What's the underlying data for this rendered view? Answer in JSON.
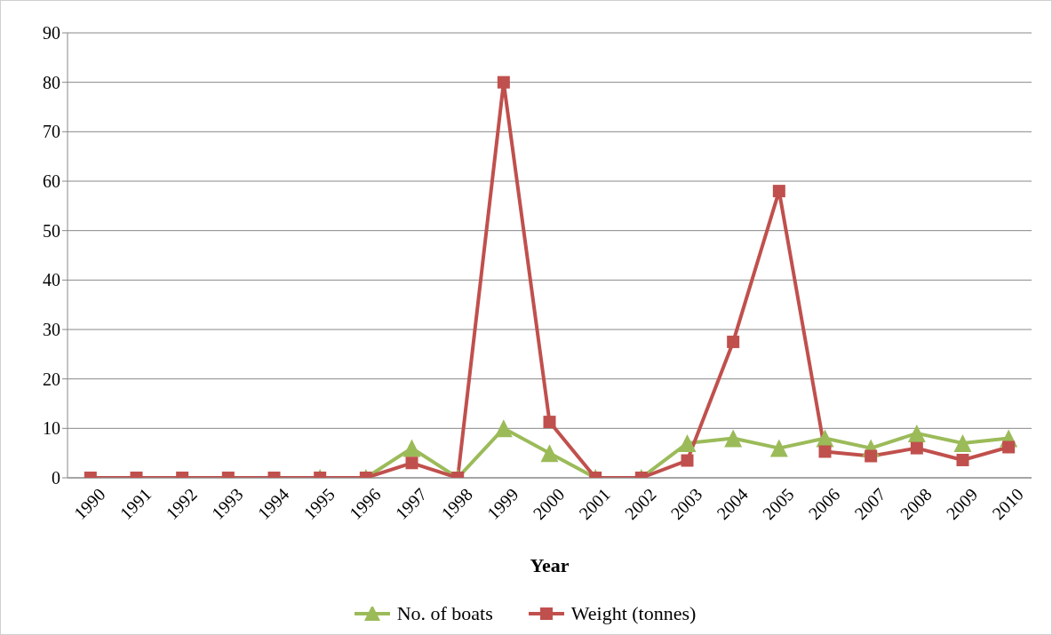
{
  "chart_data": {
    "type": "line",
    "xlabel": "Year",
    "categories": [
      "1990",
      "1991",
      "1992",
      "1993",
      "1994",
      "1995",
      "1996",
      "1997",
      "1998",
      "1999",
      "2000",
      "2001",
      "2002",
      "2003",
      "2004",
      "2005",
      "2006",
      "2007",
      "2008",
      "2009",
      "2010"
    ],
    "series": [
      {
        "name": "No. of boats",
        "color": "#9bbb59",
        "marker": "triangle",
        "values": [
          null,
          null,
          null,
          null,
          null,
          0,
          0,
          6,
          0,
          10,
          5,
          0,
          0,
          7,
          8,
          6,
          8,
          6,
          9,
          7,
          8
        ]
      },
      {
        "name": "Weight (tonnes)",
        "color": "#c0504d",
        "marker": "square",
        "values": [
          0,
          0,
          0,
          0,
          0,
          0,
          0,
          3,
          0,
          80,
          11.3,
          0,
          0,
          3.5,
          27.5,
          58,
          5.3,
          4.4,
          6,
          3.6,
          6.2
        ]
      }
    ],
    "ylim": [
      0,
      90
    ],
    "yticks": [
      0,
      10,
      20,
      30,
      40,
      50,
      60,
      70,
      80,
      90
    ],
    "grid": "y",
    "legend": "bottom",
    "line_style": "solid"
  }
}
